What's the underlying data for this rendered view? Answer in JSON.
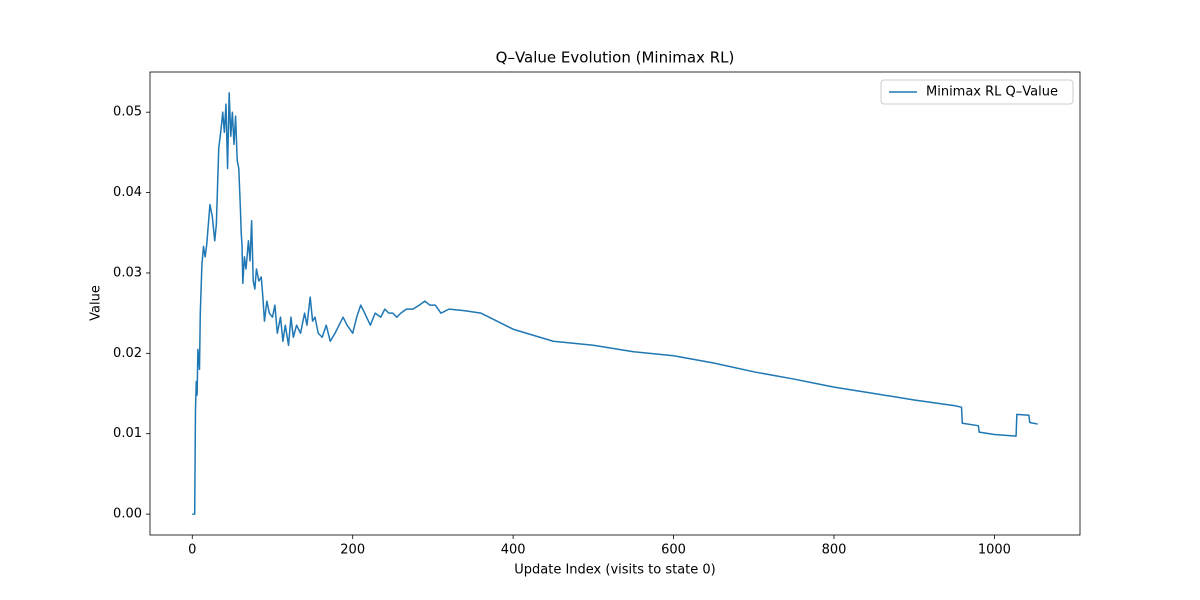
{
  "chart_data": {
    "type": "line",
    "title": "Q–Value Evolution (Minimax RL)",
    "x_label": "Update Index (visits to state 0)",
    "y_label": "Value",
    "x": [
      0,
      3,
      4,
      5,
      6,
      7,
      9,
      10,
      12,
      14,
      16,
      18,
      20,
      22,
      25,
      28,
      30,
      33,
      36,
      38,
      40,
      42,
      44,
      46,
      48,
      50,
      52,
      54,
      56,
      57,
      58,
      60,
      61,
      62,
      63,
      65,
      67,
      70,
      72,
      74,
      76,
      78,
      80,
      83,
      86,
      88,
      90,
      93,
      96,
      100,
      103,
      106,
      110,
      113,
      116,
      120,
      123,
      126,
      130,
      135,
      140,
      143,
      147,
      150,
      153,
      157,
      162,
      167,
      172,
      178,
      183,
      188,
      193,
      200,
      205,
      210,
      215,
      222,
      228,
      235,
      240,
      245,
      250,
      255,
      260,
      267,
      275,
      283,
      290,
      296,
      303,
      310,
      320,
      340,
      360,
      380,
      400,
      450,
      500,
      550,
      600,
      650,
      700,
      750,
      800,
      850,
      900,
      950,
      959,
      960,
      980,
      981,
      1000,
      1027,
      1028,
      1043,
      1044,
      1054
    ],
    "series": [
      {
        "name": "Minimax RL Q–Value",
        "color": "#1f77b4",
        "values": [
          0,
          0,
          0.013,
          0.0165,
          0.0148,
          0.0205,
          0.018,
          0.025,
          0.031,
          0.0333,
          0.032,
          0.0335,
          0.036,
          0.0385,
          0.037,
          0.034,
          0.036,
          0.0455,
          0.048,
          0.05,
          0.0475,
          0.051,
          0.043,
          0.0524,
          0.047,
          0.05,
          0.046,
          0.0495,
          0.044,
          0.0435,
          0.043,
          0.038,
          0.035,
          0.0335,
          0.0287,
          0.032,
          0.0305,
          0.034,
          0.0315,
          0.0365,
          0.029,
          0.028,
          0.0305,
          0.029,
          0.0295,
          0.027,
          0.024,
          0.0265,
          0.025,
          0.0245,
          0.026,
          0.0225,
          0.0245,
          0.0215,
          0.0235,
          0.021,
          0.0245,
          0.022,
          0.0235,
          0.0225,
          0.025,
          0.0235,
          0.027,
          0.024,
          0.0245,
          0.0225,
          0.022,
          0.0235,
          0.0215,
          0.0225,
          0.0235,
          0.0245,
          0.0235,
          0.0225,
          0.0245,
          0.026,
          0.025,
          0.0235,
          0.025,
          0.0245,
          0.0255,
          0.025,
          0.025,
          0.0245,
          0.025,
          0.0255,
          0.0255,
          0.026,
          0.0265,
          0.026,
          0.026,
          0.025,
          0.0255,
          0.0253,
          0.025,
          0.024,
          0.023,
          0.0215,
          0.021,
          0.0202,
          0.0197,
          0.0188,
          0.0177,
          0.0168,
          0.0158,
          0.015,
          0.0142,
          0.0135,
          0.0133,
          0.0113,
          0.011,
          0.0102,
          0.0099,
          0.0097,
          0.0124,
          0.0123,
          0.0114,
          0.0112
        ]
      }
    ],
    "xlim": [
      -52.7,
      1106.7
    ],
    "ylim": [
      -0.0026,
      0.055
    ],
    "xticks": [
      0,
      200,
      400,
      600,
      800,
      1000
    ],
    "yticks": [
      {
        "value": 0,
        "label": "0.00"
      },
      {
        "value": 0.01,
        "label": "0.01"
      },
      {
        "value": 0.02,
        "label": "0.02"
      },
      {
        "value": 0.03,
        "label": "0.03"
      },
      {
        "value": 0.04,
        "label": "0.04"
      },
      {
        "value": 0.05,
        "label": "0.05"
      }
    ],
    "legend": "upper right"
  }
}
